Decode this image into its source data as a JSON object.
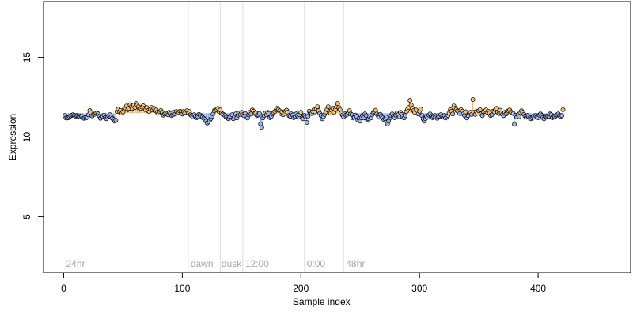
{
  "chart_data": {
    "type": "scatter",
    "title": "",
    "xlabel": "Sample index",
    "ylabel": "Expression",
    "xlim": [
      -17,
      478
    ],
    "ylim": [
      1.5,
      18.5
    ],
    "x_ticks": [
      0,
      100,
      200,
      300,
      400
    ],
    "y_ticks": [
      5,
      10,
      15
    ],
    "x_tick_labels": [
      "0",
      "100",
      "200",
      "300",
      "400"
    ],
    "y_tick_labels": [
      "5",
      "10",
      "15"
    ],
    "grid": false,
    "legend": "none",
    "vertical_lines": [
      105,
      132,
      151,
      203,
      236
    ],
    "annotations": [
      {
        "text": "24hr",
        "x": 2
      },
      {
        "text": "dawn",
        "x": 107
      },
      {
        "text": "dusk",
        "x": 133
      },
      {
        "text": "12:00",
        "x": 153
      },
      {
        "text": "0:00",
        "x": 205
      },
      {
        "text": "48hr",
        "x": 238
      }
    ],
    "colors": {
      "point_fill_low": "#9fb3ec",
      "point_fill_high": "#f0c27a",
      "point_stroke": "#000000",
      "segment_low": "#7f9be0",
      "segment_high": "#e8a85a",
      "annotation_lines": "#dedede",
      "annotation_text": "#a8a8a8"
    },
    "baseline": 11.5,
    "series": [
      {
        "x_start": 1,
        "x_step": 1,
        "values": [
          11.35,
          11.2,
          11.2,
          11.22,
          11.3,
          11.33,
          11.38,
          11.4,
          11.36,
          11.3,
          11.35,
          11.33,
          11.33,
          11.26,
          11.3,
          11.28,
          11.18,
          11.22,
          11.2,
          11.25,
          11.4,
          11.66,
          11.53,
          11.33,
          11.42,
          11.43,
          11.52,
          11.5,
          11.45,
          11.33,
          11.18,
          11.25,
          11.3,
          11.38,
          11.22,
          11.15,
          11.27,
          11.32,
          11.4,
          11.26,
          11.18,
          11.1,
          11.0,
          11.07,
          11.6,
          11.75,
          11.6,
          11.65,
          11.5,
          11.58,
          11.75,
          11.82,
          11.95,
          11.72,
          11.8,
          12.02,
          11.9,
          11.8,
          12.0,
          11.85,
          12.1,
          12.0,
          11.9,
          11.75,
          11.8,
          11.88,
          11.96,
          11.8,
          11.72,
          11.85,
          11.65,
          11.6,
          11.75,
          11.85,
          11.7,
          11.8,
          11.65,
          11.7,
          11.55,
          11.5,
          11.6,
          11.66,
          11.55,
          11.38,
          11.45,
          11.52,
          11.45,
          11.4,
          11.55,
          11.48,
          11.35,
          11.4,
          11.55,
          11.45,
          11.6,
          11.5,
          11.55,
          11.62,
          11.58,
          11.45,
          11.6,
          11.5,
          11.55,
          11.65,
          11.52,
          11.6,
          11.4,
          11.35,
          11.27,
          11.4,
          11.3,
          11.22,
          11.3,
          11.42,
          11.38,
          11.3,
          11.24,
          11.18,
          11.1,
          11.0,
          10.88,
          10.95,
          11.05,
          11.15,
          11.3,
          11.45,
          11.65,
          11.75,
          11.7,
          11.8,
          11.6,
          11.7,
          11.5,
          11.45,
          11.4,
          11.35,
          11.26,
          11.2,
          11.15,
          11.25,
          11.3,
          11.4,
          11.15,
          11.25,
          11.45,
          11.2,
          11.38,
          11.5,
          11.42,
          11.55,
          11.4,
          11.35,
          11.48,
          11.3,
          11.2,
          11.4,
          11.55,
          11.45,
          11.7,
          11.62,
          11.48,
          11.5,
          11.35,
          11.4,
          11.48,
          10.82,
          10.6,
          11.2,
          11.35,
          11.5,
          11.4,
          11.55,
          11.48,
          11.22,
          11.3,
          11.45,
          11.55,
          11.6,
          11.7,
          11.8,
          11.72,
          11.65,
          11.48,
          11.58,
          11.4,
          11.5,
          11.62,
          11.68,
          11.55,
          11.35,
          11.3,
          11.45,
          11.38,
          11.22,
          11.3,
          11.45,
          11.35,
          11.25,
          11.4,
          11.55,
          11.2,
          11.15,
          11.35,
          11.28,
          10.92,
          11.3,
          11.62,
          11.52,
          11.48,
          11.6,
          11.72,
          11.58,
          11.78,
          11.9,
          11.65,
          11.48,
          11.35,
          11.15,
          11.28,
          11.42,
          11.58,
          11.72,
          11.9,
          11.6,
          11.5,
          11.68,
          11.82,
          11.55,
          11.72,
          11.9,
          12.1,
          11.85,
          11.72,
          11.5,
          11.38,
          11.28,
          11.45,
          11.38,
          11.42,
          11.55,
          11.65,
          11.45,
          11.4,
          11.2,
          11.25,
          11.38,
          11.3,
          11.08,
          11.15,
          11.0,
          11.22,
          11.35,
          11.2,
          11.45,
          11.35,
          11.1,
          11.15,
          11.28,
          11.2,
          11.4,
          11.55,
          11.6,
          11.68,
          11.45,
          11.35,
          11.25,
          11.42,
          11.32,
          11.2,
          11.1,
          11.15,
          11.25,
          10.82,
          11.0,
          11.2,
          11.35,
          11.45,
          11.3,
          11.22,
          11.38,
          11.5,
          11.4,
          11.28,
          11.55,
          11.42,
          11.3,
          11.2,
          11.35,
          11.6,
          11.75,
          11.85,
          12.3,
          12.0,
          11.8,
          11.65,
          11.55,
          11.7,
          11.5,
          11.45,
          11.62,
          11.75,
          11.35,
          11.15,
          11.0,
          11.15,
          11.3,
          11.25,
          11.38,
          11.45,
          11.3,
          11.22,
          11.3,
          11.35,
          11.25,
          11.18,
          11.28,
          11.32,
          11.4,
          11.3,
          11.25,
          11.35,
          11.2,
          11.28,
          11.35,
          11.5,
          11.72,
          11.62,
          11.45,
          11.95,
          11.8,
          11.72,
          11.65,
          11.6,
          11.48,
          11.72,
          11.62,
          11.45,
          11.35,
          11.58,
          11.2,
          11.35,
          11.5,
          11.55,
          11.42,
          12.35,
          11.55,
          11.42,
          11.6,
          11.5,
          11.65,
          11.72,
          11.45,
          11.35,
          11.58,
          11.62,
          11.7,
          11.55,
          11.62,
          11.5,
          11.35,
          11.4,
          11.62,
          11.58,
          11.72,
          11.8,
          11.55,
          11.48,
          11.68,
          11.52,
          11.42,
          11.35,
          11.55,
          11.45,
          11.58,
          11.65,
          11.7,
          11.58,
          11.52,
          11.48,
          10.8,
          11.35,
          11.25,
          11.4,
          11.28,
          11.55,
          11.65,
          11.55,
          11.42,
          11.32,
          11.25,
          11.35,
          11.28,
          11.2,
          11.15,
          11.22,
          11.3,
          11.25,
          11.35,
          11.28,
          11.22,
          11.38,
          11.45,
          11.35,
          11.22,
          11.15,
          11.3,
          11.28,
          11.32,
          11.3,
          11.45,
          11.4,
          11.22,
          11.3,
          11.28,
          11.35,
          11.4,
          11.45,
          11.35,
          11.3,
          11.35,
          11.72
        ]
      }
    ]
  }
}
